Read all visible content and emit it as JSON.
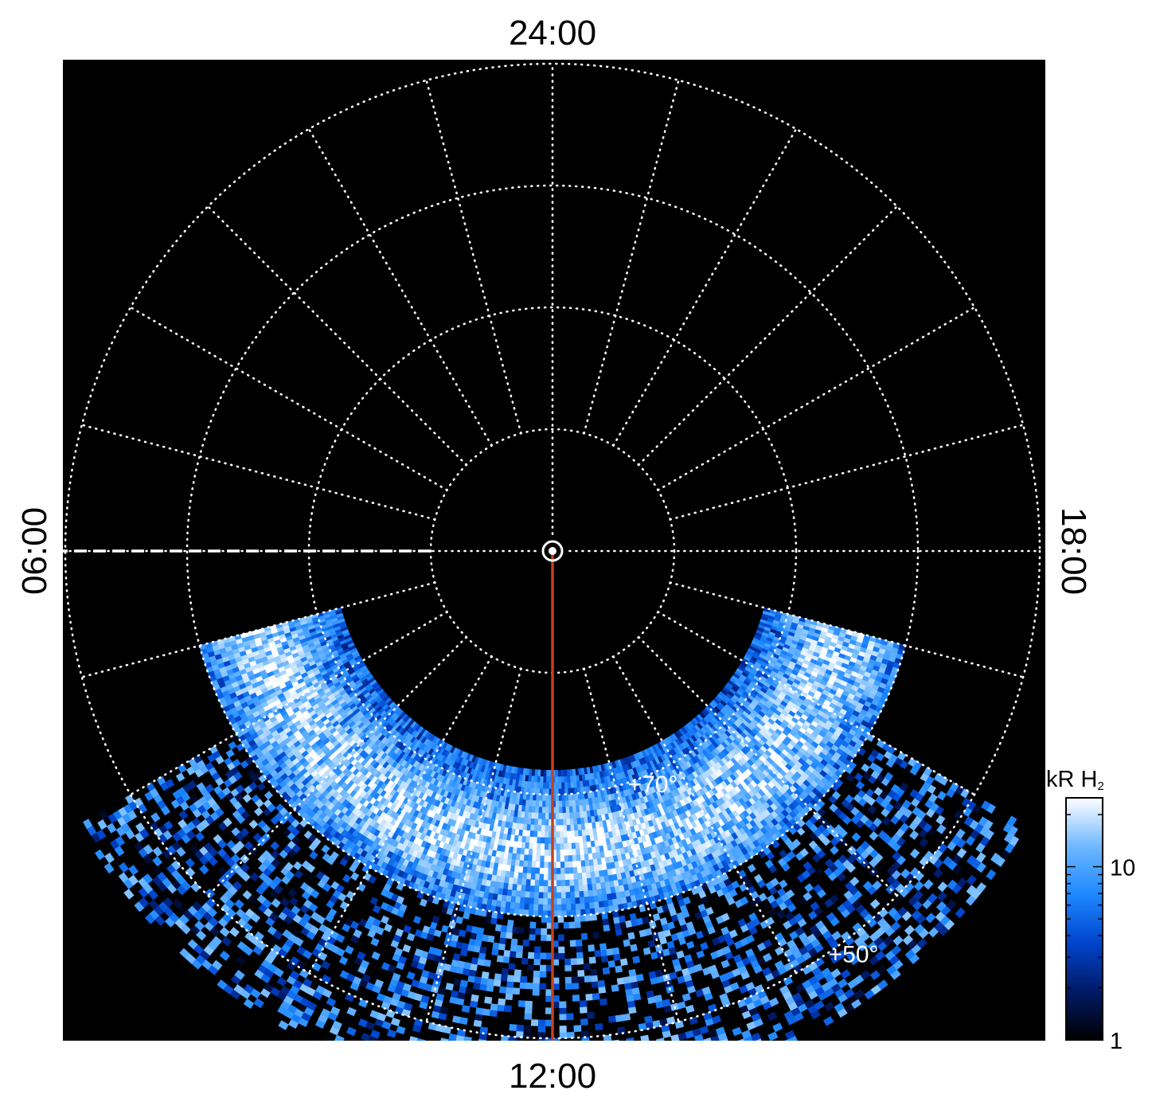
{
  "chart_data": {
    "type": "heatmap",
    "projection": "polar",
    "quantity": "auroral emission intensity",
    "local_time_labels": {
      "top": "24:00",
      "bottom": "12:00",
      "left": "06:00",
      "right": "18:00"
    },
    "latitude_rings_deg": [
      90,
      80,
      70,
      60,
      50
    ],
    "latitude_labels": [
      {
        "text": "+70°",
        "latitude": 70,
        "local_time_h": 13.2
      },
      {
        "text": "+50°",
        "latitude": 50,
        "local_time_h": 14.3
      }
    ],
    "meridian_spacing_h": 1,
    "grid": true,
    "grid_style": "dotted",
    "highlighted_meridians": [
      {
        "local_time_h": 12,
        "from_latitude": 90,
        "to_latitude": 50,
        "color": "#c8401a",
        "style": "solid"
      },
      {
        "local_time_h": 6,
        "from_latitude": 80,
        "to_latitude": 50,
        "color": "#ffffff",
        "style": "dashed"
      }
    ],
    "emission_bands": [
      {
        "description": "main oval",
        "local_time_range_h": [
          7,
          17
        ],
        "latitude_range_deg": [
          60,
          72
        ],
        "peak_kR": 20
      },
      {
        "description": "noisy lower latitudes",
        "local_time_range_h": [
          8,
          16
        ],
        "latitude_range_deg": [
          45,
          60
        ],
        "peak_kR": 15
      }
    ],
    "colorbar": {
      "label": "kR H",
      "label_subscript": "2",
      "scale": "log",
      "range": [
        1,
        25
      ],
      "ticks": [
        1,
        10
      ],
      "tick_labels": [
        "1",
        "10"
      ],
      "colors": [
        "#000000",
        "#001a66",
        "#0044cc",
        "#1e88ff",
        "#6fb8ff",
        "#ffffff"
      ]
    },
    "background_color": "#000000"
  }
}
